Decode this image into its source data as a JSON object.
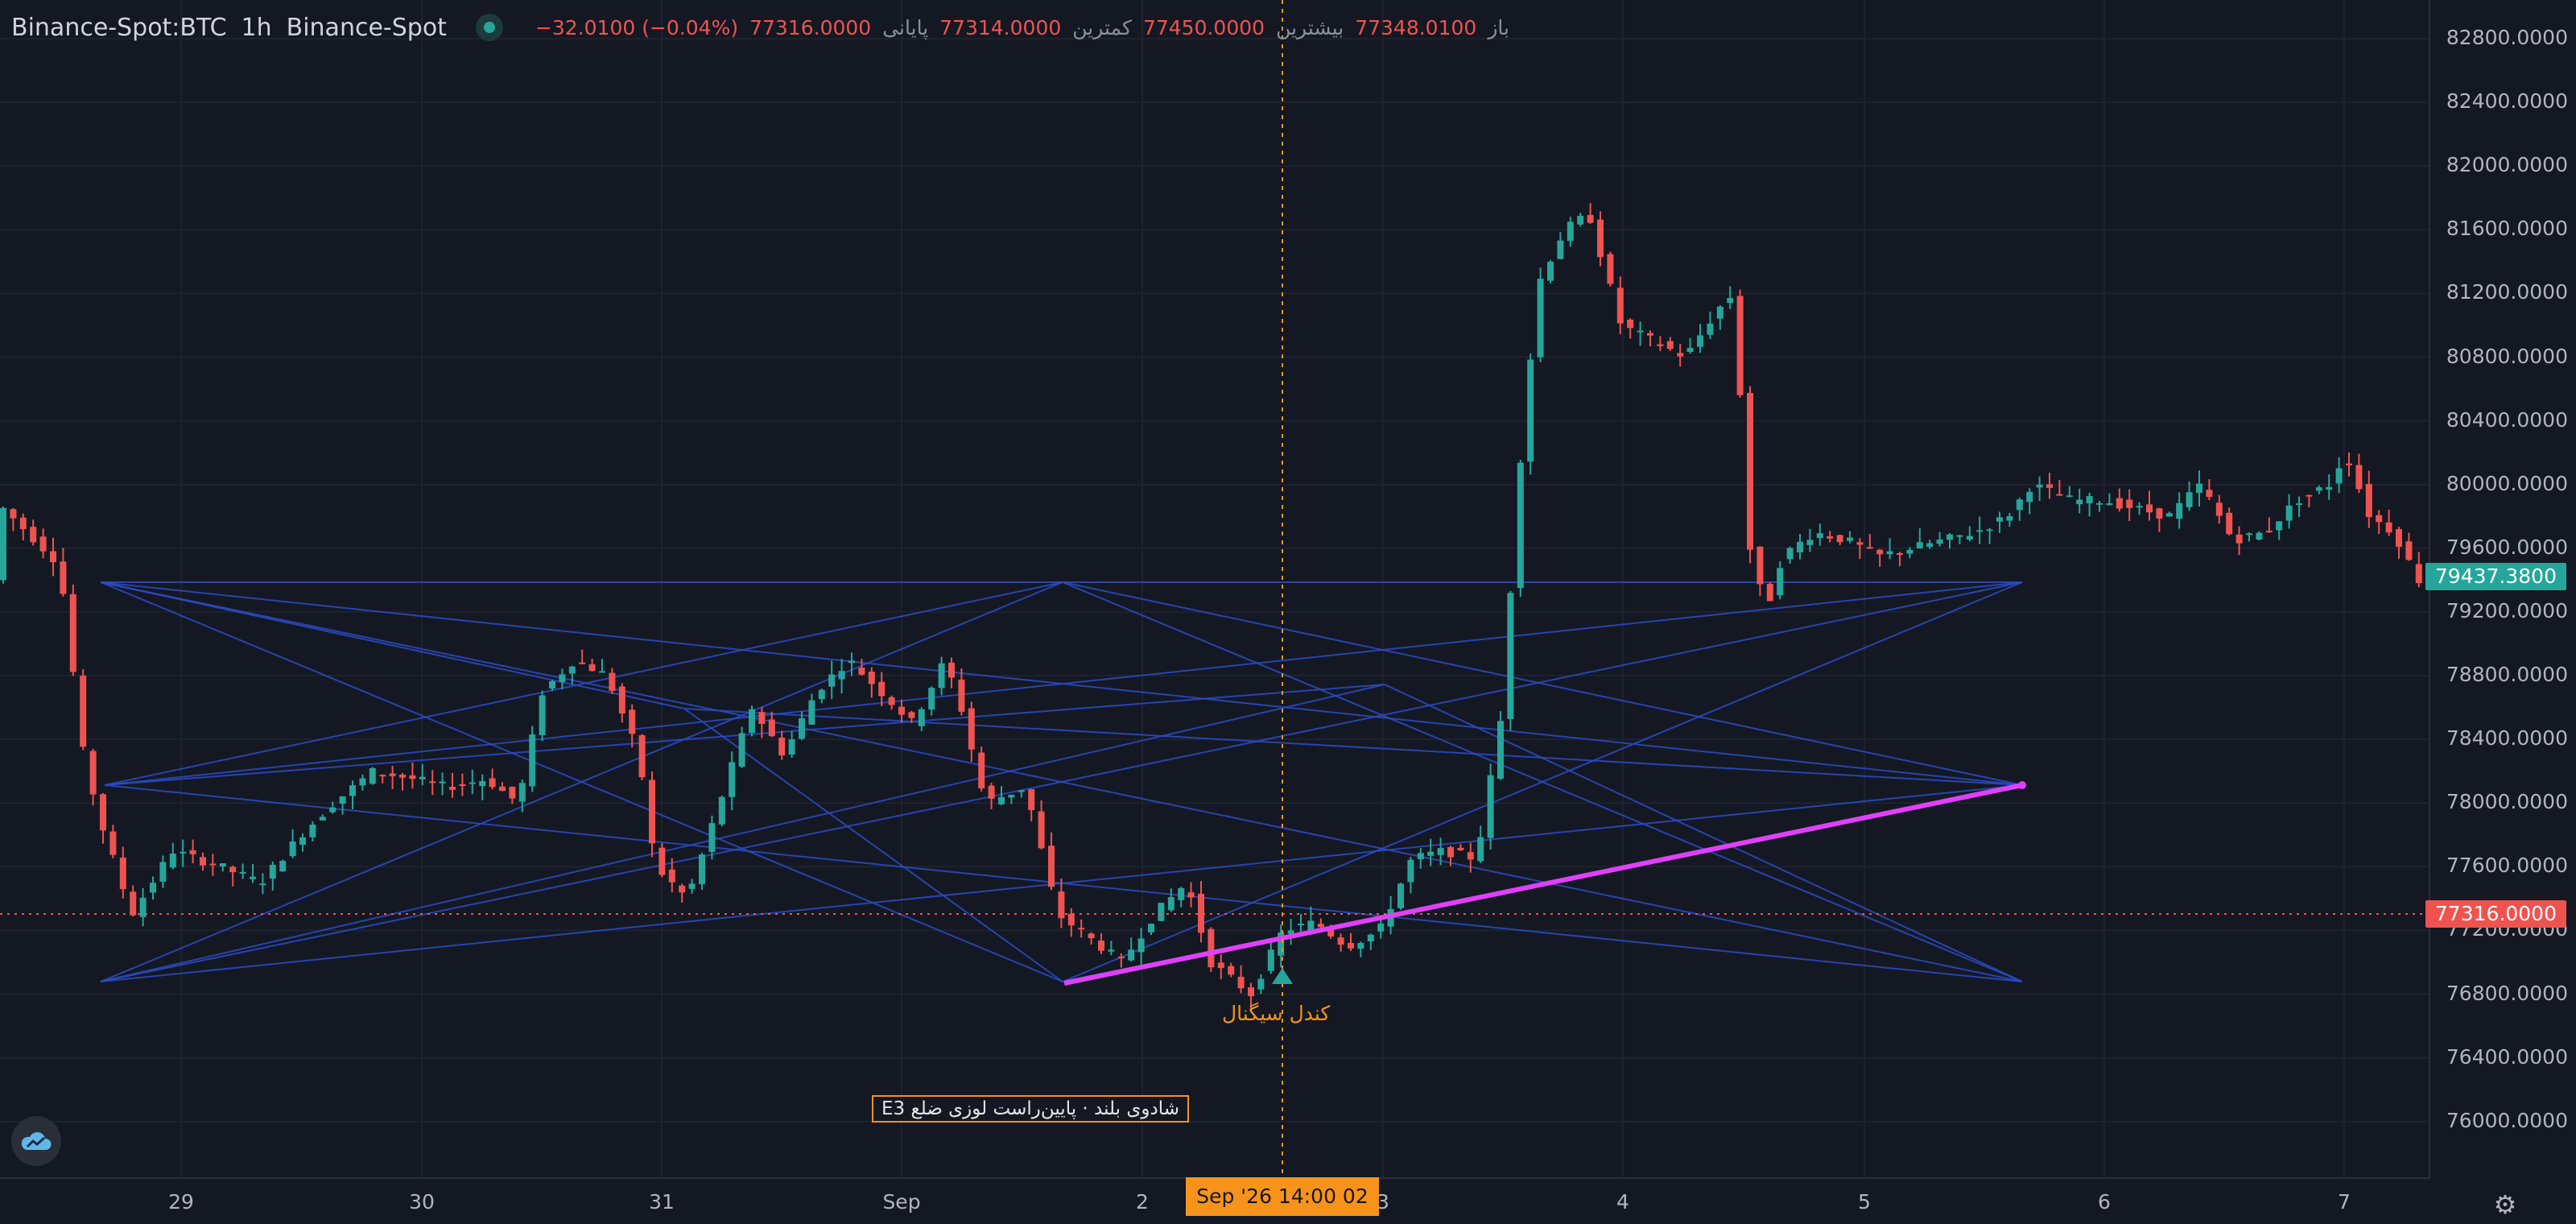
{
  "header": {
    "symbol": "Binance-Spot:BTC",
    "interval": "1h",
    "exchange": "Binance-Spot",
    "ohlc": {
      "open_label": "باز",
      "open": "77348.0100",
      "high_label": "بیشترین",
      "high": "77450.0000",
      "low_label": "کمترین",
      "low": "77314.0000",
      "close_label": "پایانی",
      "close": "77316.0000",
      "change": "−32.0100 (−0.04%)"
    }
  },
  "price_axis": {
    "ticks": [
      "82800.0000",
      "82400.0000",
      "82000.0000",
      "81600.0000",
      "81200.0000",
      "80800.0000",
      "80400.0000",
      "80000.0000",
      "79600.0000",
      "79200.0000",
      "78800.0000",
      "78400.0000",
      "78000.0000",
      "77600.0000",
      "77200.0000",
      "76800.0000",
      "76400.0000",
      "76000.0000"
    ],
    "last_price_tag": "77316.0000",
    "alt_price_tag": "79437.3800"
  },
  "time_axis": {
    "ticks": [
      "29",
      "30",
      "31",
      "Sep",
      "2",
      "3",
      "4",
      "5",
      "6",
      "7"
    ],
    "crosshair_label": "Sep '26   14:00 02"
  },
  "annotations": {
    "pattern_label": "کندل سیگنال",
    "note": "E3 شادوی بلند · پایین‌راست لوزی ضلع"
  },
  "colors": {
    "up": "#26a69a",
    "down": "#ef5350",
    "trendline": "#e040fb",
    "pattern_lines": "#2a4cc7",
    "crosshair": "#f7931a"
  },
  "icons": {
    "logo": "cloud-logo-icon",
    "settings": "gear-icon",
    "status": "status-dot-icon"
  }
}
